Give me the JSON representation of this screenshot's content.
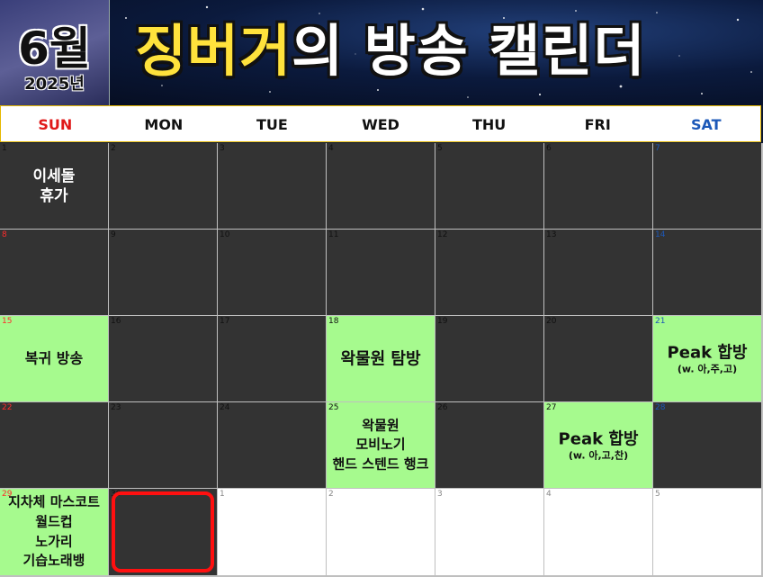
{
  "header": {
    "month": "6월",
    "year": "2025년",
    "title_highlight": "징버거",
    "title_rest": "의 방송 캘린더"
  },
  "weekdays": [
    "SUN",
    "MON",
    "TUE",
    "WED",
    "THU",
    "FRI",
    "SAT"
  ],
  "colors": {
    "sunday": "#e01919",
    "saturday": "#1c58b8",
    "event_green": "#a6fa8e",
    "empty_dark": "#333333",
    "selected_border": "#ff1010"
  },
  "cells": [
    {
      "day": "1",
      "style": "dark",
      "lines": [
        "이세돌",
        "휴가"
      ],
      "color": "white"
    },
    {
      "day": "2",
      "style": "dark",
      "lines": []
    },
    {
      "day": "3",
      "style": "dark",
      "lines": []
    },
    {
      "day": "4",
      "style": "dark",
      "lines": []
    },
    {
      "day": "5",
      "style": "dark",
      "lines": []
    },
    {
      "day": "6",
      "style": "dark",
      "lines": []
    },
    {
      "day": "7",
      "style": "dark",
      "lines": [],
      "num": "blue"
    },
    {
      "day": "8",
      "style": "dark",
      "lines": [],
      "num": "red"
    },
    {
      "day": "9",
      "style": "dark",
      "lines": []
    },
    {
      "day": "10",
      "style": "dark",
      "lines": []
    },
    {
      "day": "11",
      "style": "dark",
      "lines": []
    },
    {
      "day": "12",
      "style": "dark",
      "lines": []
    },
    {
      "day": "13",
      "style": "dark",
      "lines": []
    },
    {
      "day": "14",
      "style": "dark",
      "lines": [],
      "num": "blue"
    },
    {
      "day": "15",
      "style": "green",
      "lines": [
        "복귀 방송"
      ],
      "num": "red"
    },
    {
      "day": "16",
      "style": "dark",
      "lines": []
    },
    {
      "day": "17",
      "style": "dark",
      "lines": []
    },
    {
      "day": "18",
      "style": "green",
      "lines": [
        "왁물원 탐방"
      ],
      "big": true
    },
    {
      "day": "19",
      "style": "dark",
      "lines": []
    },
    {
      "day": "20",
      "style": "dark",
      "lines": []
    },
    {
      "day": "21",
      "style": "green",
      "lines": [
        "Peak 합방"
      ],
      "sub": "(w. 아,주,고)",
      "num": "blue",
      "big": true
    },
    {
      "day": "22",
      "style": "dark",
      "lines": [],
      "num": "red"
    },
    {
      "day": "23",
      "style": "dark",
      "lines": []
    },
    {
      "day": "24",
      "style": "dark",
      "lines": []
    },
    {
      "day": "25",
      "style": "green",
      "lines": [
        "왁물원",
        "모비노기",
        "핸드 스텐드 행크"
      ],
      "sm": true
    },
    {
      "day": "26",
      "style": "dark",
      "lines": []
    },
    {
      "day": "27",
      "style": "green",
      "lines": [
        "Peak 합방"
      ],
      "sub": "(w. 아,고,찬)",
      "big": true
    },
    {
      "day": "28",
      "style": "dark",
      "lines": [],
      "num": "blue"
    },
    {
      "day": "29",
      "style": "green",
      "lines": [
        "지차체 마스코트",
        "월드컵",
        "노가리",
        "기습노래뱅"
      ],
      "num": "red",
      "sm": true
    },
    {
      "day": "30",
      "style": "dark",
      "lines": [],
      "selected": true
    },
    {
      "day": "1",
      "style": "white",
      "lines": []
    },
    {
      "day": "2",
      "style": "white",
      "lines": []
    },
    {
      "day": "3",
      "style": "white",
      "lines": []
    },
    {
      "day": "4",
      "style": "white",
      "lines": []
    },
    {
      "day": "5",
      "style": "white",
      "lines": []
    }
  ]
}
